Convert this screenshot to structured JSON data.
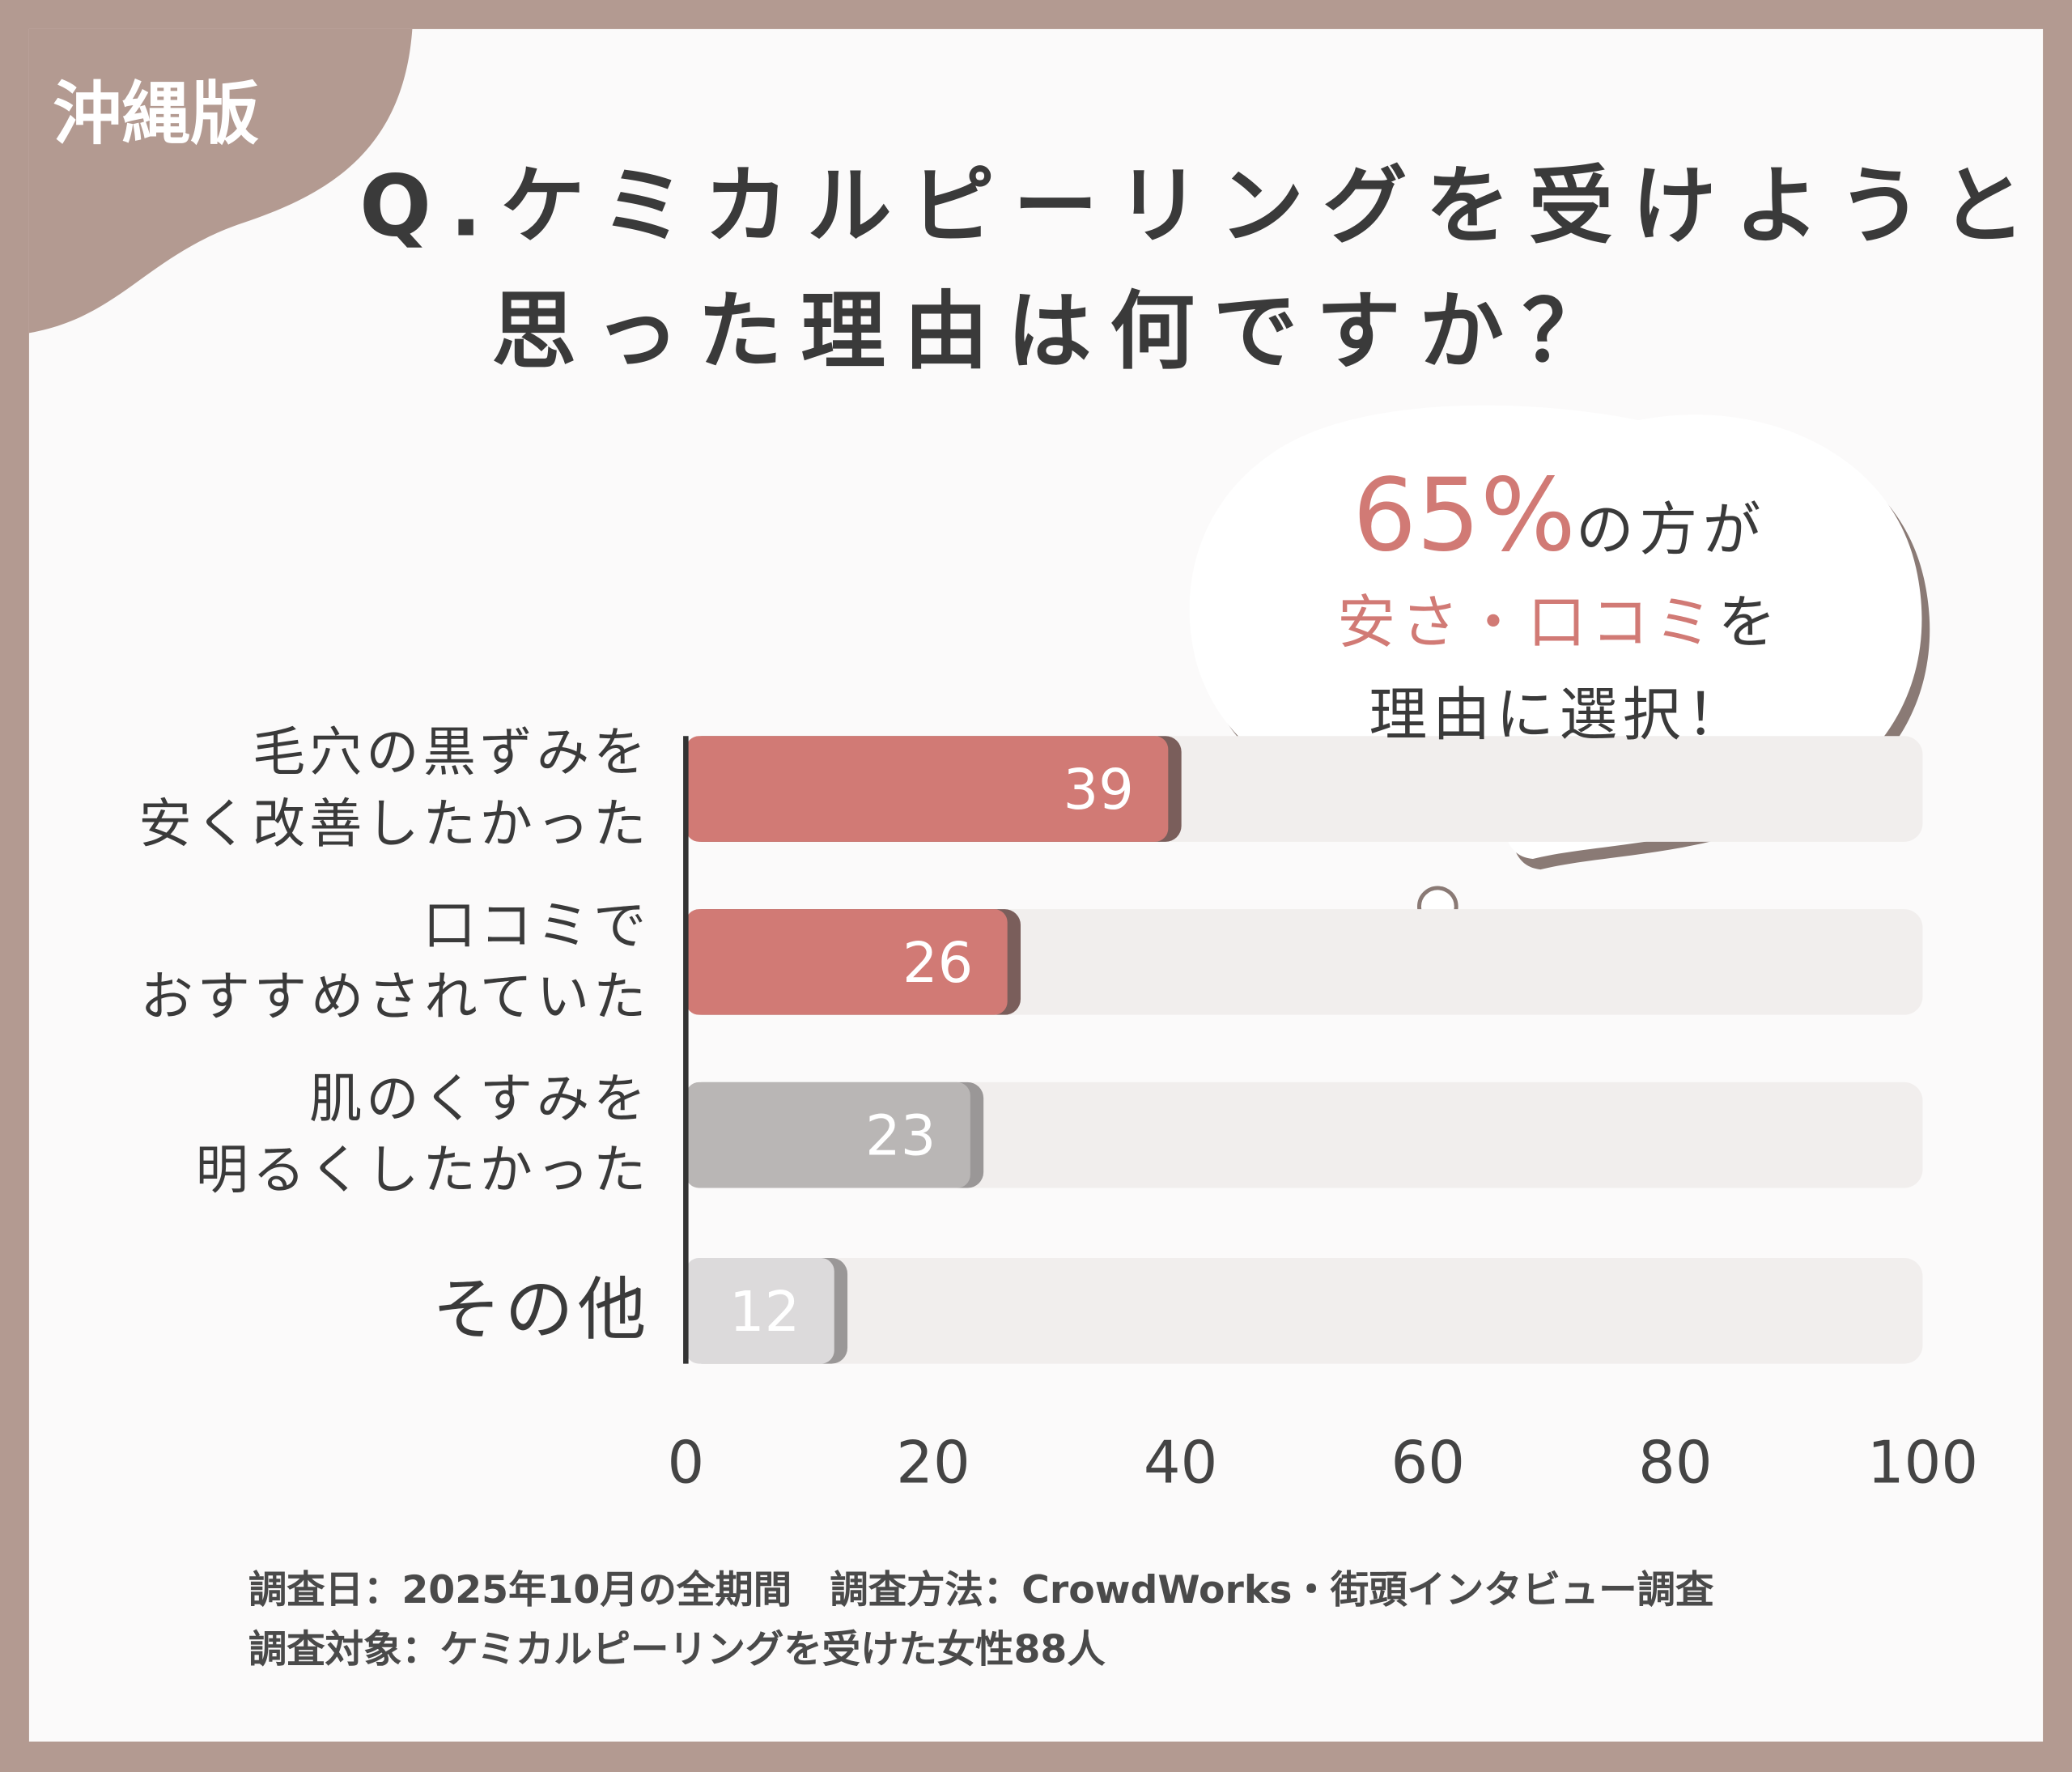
{
  "tag": "沖縄版",
  "chart_data": {
    "type": "bar",
    "title": [
      "Q.ケミカルピーリングを受けようと",
      "思った理由は何ですか？"
    ],
    "categories": [
      "毛穴の黒ずみを\n安く改善したかった",
      "口コミで\nおすすめされていた",
      "肌のくすみを\n明るくしたかった",
      "その他"
    ],
    "values": [
      39,
      26,
      23,
      12
    ],
    "colors": [
      "#d17a75",
      "#d17a75",
      "#b9b6b5",
      "#dcdadb"
    ],
    "xlim": [
      0,
      100
    ],
    "xticks": [
      0,
      20,
      40,
      60,
      80,
      100
    ],
    "annotation": {
      "lines": [
        [
          {
            "text": "65%",
            "highlight": true
          },
          {
            "text": "の方が",
            "highlight": false
          }
        ],
        [
          {
            "text": "安さ・口コミ",
            "highlight": true
          },
          {
            "text": "を",
            "highlight": false
          }
        ],
        [
          {
            "text": "理由に選択！",
            "highlight": false
          }
        ]
      ]
    }
  },
  "notes": [
    "調査日：2025年10月の全期間　調査方法：CrowdWorks・街頭インタビュー調査",
    "調査対象：ケミカルピーリングを受けた女性88人"
  ]
}
